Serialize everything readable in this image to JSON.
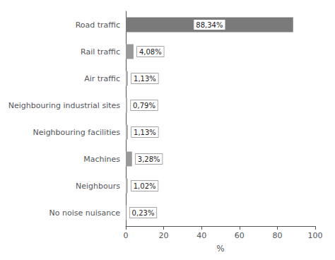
{
  "chart_data": {
    "type": "bar",
    "orientation": "horizontal",
    "categories": [
      "No noise nuisance",
      "Neighbours",
      "Machines",
      "Neighbouring facilities",
      "Neighbouring industrial sites",
      "Air traffic",
      "Rail traffic",
      "Road traffic"
    ],
    "values": [
      0.23,
      1.02,
      3.28,
      1.13,
      0.79,
      1.13,
      4.08,
      88.34
    ],
    "value_labels": [
      "0,23%",
      "1,02%",
      "3,28%",
      "1,13%",
      "0,79%",
      "1,13%",
      "4,08%",
      "88,34%"
    ],
    "colors": [
      "#b0b0b0",
      "#b0b0b0",
      "#999999",
      "#b0b0b0",
      "#b0b0b0",
      "#b0b0b0",
      "#999999",
      "#7a7a7a"
    ],
    "xlabel": "%",
    "xlim": [
      0,
      100
    ],
    "xticks": [
      0,
      20,
      40,
      60,
      80,
      100
    ],
    "data_labels": true,
    "grid": false
  }
}
